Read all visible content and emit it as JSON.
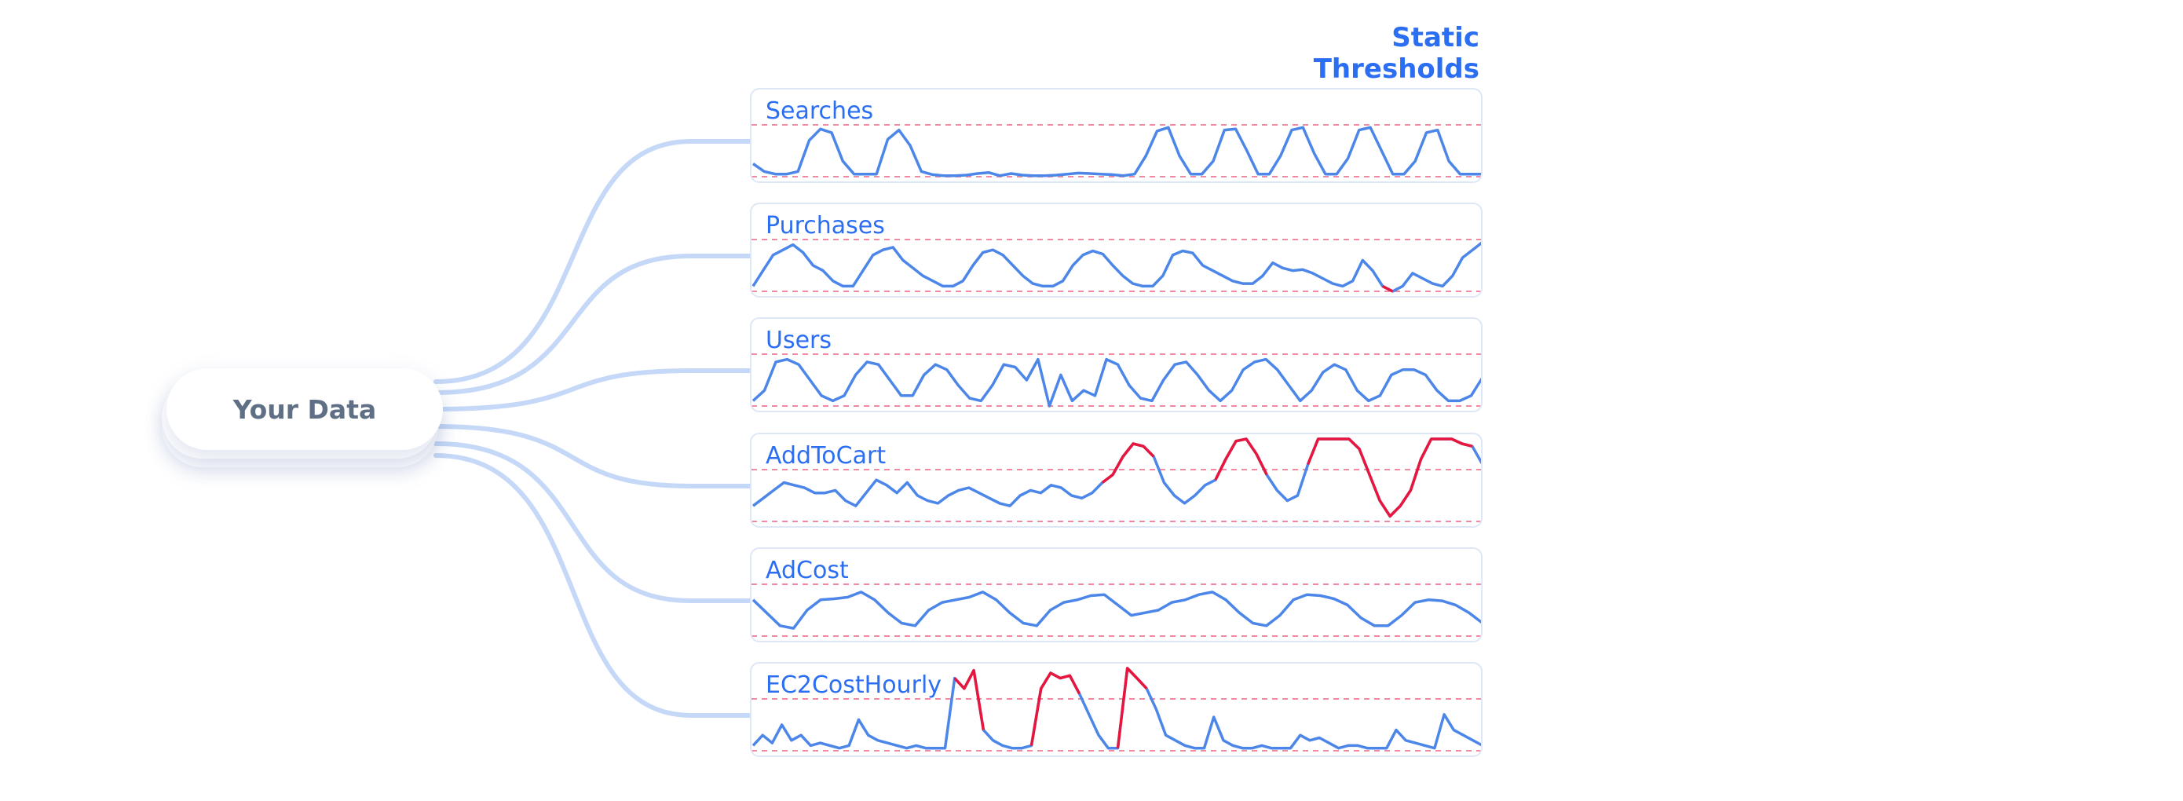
{
  "title": "Static Thresholds",
  "source": {
    "label": "Your Data"
  },
  "colors": {
    "line": "#4b86e8",
    "breach": "#e8153c",
    "threshold": "#f08aa0",
    "connector": "#c5d8f7",
    "title": "#2b6ef2"
  },
  "metrics": [
    {
      "name": "Searches",
      "series": [
        0.25,
        0.1,
        0.05,
        0.05,
        0.1,
        0.7,
        0.92,
        0.85,
        0.3,
        0.05,
        0.05,
        0.05,
        0.72,
        0.9,
        0.6,
        0.1,
        0.04,
        0.02,
        0.02,
        0.03,
        0.06,
        0.08,
        0.02,
        0.06,
        0.03,
        0.02,
        0.02,
        0.03,
        0.05,
        0.07,
        0.06,
        0.05,
        0.04,
        0.02,
        0.05,
        0.4,
        0.88,
        0.95,
        0.4,
        0.05,
        0.05,
        0.3,
        0.9,
        0.92,
        0.5,
        0.05,
        0.05,
        0.4,
        0.9,
        0.95,
        0.45,
        0.05,
        0.05,
        0.35,
        0.9,
        0.95,
        0.5,
        0.05,
        0.05,
        0.3,
        0.85,
        0.9,
        0.3,
        0.05,
        0.05,
        0.05
      ],
      "breach": []
    },
    {
      "name": "Purchases",
      "series": [
        0.1,
        0.4,
        0.7,
        0.8,
        0.9,
        0.75,
        0.5,
        0.4,
        0.2,
        0.1,
        0.1,
        0.4,
        0.7,
        0.8,
        0.85,
        0.6,
        0.45,
        0.3,
        0.2,
        0.1,
        0.1,
        0.2,
        0.5,
        0.75,
        0.8,
        0.7,
        0.5,
        0.3,
        0.15,
        0.1,
        0.1,
        0.2,
        0.5,
        0.7,
        0.78,
        0.72,
        0.5,
        0.3,
        0.15,
        0.1,
        0.1,
        0.3,
        0.7,
        0.78,
        0.74,
        0.5,
        0.4,
        0.3,
        0.2,
        0.15,
        0.15,
        0.3,
        0.55,
        0.45,
        0.4,
        0.42,
        0.35,
        0.25,
        0.15,
        0.1,
        0.2,
        0.6,
        0.4,
        0.1,
        0.0,
        0.1,
        0.35,
        0.25,
        0.15,
        0.1,
        0.3,
        0.65,
        0.8,
        0.95
      ],
      "breach": [
        63,
        64
      ]
    },
    {
      "name": "Users",
      "series": [
        0.1,
        0.3,
        0.85,
        0.9,
        0.8,
        0.5,
        0.2,
        0.1,
        0.2,
        0.6,
        0.85,
        0.8,
        0.5,
        0.2,
        0.2,
        0.6,
        0.8,
        0.7,
        0.4,
        0.15,
        0.1,
        0.4,
        0.8,
        0.75,
        0.5,
        0.9,
        0.0,
        0.6,
        0.1,
        0.3,
        0.2,
        0.9,
        0.8,
        0.4,
        0.15,
        0.1,
        0.5,
        0.8,
        0.85,
        0.6,
        0.3,
        0.1,
        0.3,
        0.7,
        0.85,
        0.9,
        0.7,
        0.4,
        0.1,
        0.3,
        0.65,
        0.8,
        0.7,
        0.3,
        0.1,
        0.2,
        0.6,
        0.7,
        0.7,
        0.6,
        0.3,
        0.1,
        0.1,
        0.2,
        0.55
      ],
      "breach": []
    },
    {
      "name": "AddToCart",
      "series": [
        0.3,
        0.45,
        0.6,
        0.75,
        0.7,
        0.65,
        0.55,
        0.55,
        0.6,
        0.4,
        0.3,
        0.55,
        0.8,
        0.7,
        0.55,
        0.75,
        0.5,
        0.4,
        0.35,
        0.5,
        0.6,
        0.65,
        0.55,
        0.45,
        0.35,
        0.3,
        0.5,
        0.6,
        0.55,
        0.7,
        0.65,
        0.5,
        0.45,
        0.55,
        0.75,
        0.9,
        1.25,
        1.5,
        1.45,
        1.25,
        0.75,
        0.5,
        0.35,
        0.5,
        0.7,
        0.8,
        1.2,
        1.55,
        1.75,
        1.3,
        0.9,
        0.6,
        0.4,
        0.5,
        1.1,
        1.6,
        1.75,
        1.95,
        1.9,
        1.4,
        0.9,
        0.4,
        0.1,
        0.3,
        0.6,
        1.2,
        1.7,
        1.85,
        1.7,
        1.5,
        1.45,
        1.1
      ],
      "breach": [
        34,
        35,
        36,
        37,
        38,
        39,
        45,
        46,
        47,
        48,
        49,
        50,
        54,
        55,
        56,
        57,
        58,
        59,
        60,
        61,
        62,
        63,
        64,
        65,
        66,
        67,
        68,
        69,
        70
      ]
    },
    {
      "name": "AdCost",
      "series": [
        0.7,
        0.45,
        0.2,
        0.15,
        0.5,
        0.7,
        0.72,
        0.75,
        0.85,
        0.7,
        0.45,
        0.25,
        0.2,
        0.5,
        0.65,
        0.7,
        0.75,
        0.85,
        0.7,
        0.45,
        0.25,
        0.2,
        0.5,
        0.65,
        0.7,
        0.78,
        0.8,
        0.6,
        0.4,
        0.45,
        0.5,
        0.65,
        0.7,
        0.8,
        0.85,
        0.7,
        0.45,
        0.25,
        0.2,
        0.4,
        0.7,
        0.8,
        0.78,
        0.72,
        0.6,
        0.35,
        0.2,
        0.2,
        0.4,
        0.65,
        0.7,
        0.68,
        0.6,
        0.45,
        0.25
      ],
      "breach": []
    },
    {
      "name": "EC2CostHourly",
      "series": [
        0.1,
        0.3,
        0.15,
        0.5,
        0.2,
        0.3,
        0.1,
        0.15,
        0.1,
        0.05,
        0.1,
        0.6,
        0.3,
        0.2,
        0.15,
        0.1,
        0.05,
        0.1,
        0.05,
        0.05,
        0.05,
        1.4,
        1.2,
        1.55,
        0.4,
        0.2,
        0.1,
        0.05,
        0.05,
        0.1,
        1.2,
        1.5,
        1.4,
        1.45,
        1.1,
        0.7,
        0.3,
        0.05,
        0.05,
        1.95,
        1.4,
        1.2,
        0.8,
        0.3,
        0.2,
        0.1,
        0.05,
        0.05,
        0.65,
        0.2,
        0.1,
        0.05,
        0.05,
        0.1,
        0.05,
        0.05,
        0.05,
        0.3,
        0.2,
        0.25,
        0.15,
        0.05,
        0.1,
        0.1,
        0.05,
        0.05,
        0.05,
        0.4,
        0.2,
        0.15,
        0.1,
        0.05,
        0.7,
        0.4,
        0.3,
        0.2,
        0.1
      ],
      "breach": [
        21,
        22,
        23,
        24,
        29,
        30,
        31,
        32,
        33,
        34,
        38,
        39,
        40,
        41
      ]
    }
  ]
}
